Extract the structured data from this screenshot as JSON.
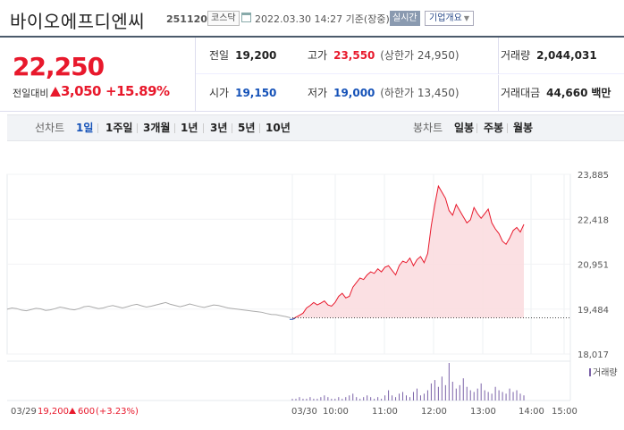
{
  "header": {
    "name": "바이오에프디엔씨",
    "code": "251120",
    "market": "코스닥",
    "datetime": "2022.03.30 14:27 기준(장중)",
    "realtime_label": "실시간",
    "company_label": "기업개요"
  },
  "summary": {
    "price": "22,250",
    "change_label": "전일대비",
    "change_value": "3,050",
    "change_pct": "+15.89%",
    "prev_close_label": "전일",
    "prev_close": "19,200",
    "high_label": "고가",
    "high": "23,550",
    "upper_limit": "(상한가 24,950)",
    "volume_label": "거래량",
    "volume": "2,044,031",
    "open_label": "시가",
    "open": "19,150",
    "low_label": "저가",
    "low": "19,000",
    "lower_limit": "(하한가 13,450)",
    "amount_label": "거래대금",
    "amount": "44,660",
    "amount_unit": "백만"
  },
  "tabs": {
    "line_label": "선차트",
    "line_tabs": [
      "1일",
      "1주일",
      "3개월",
      "1년",
      "3년",
      "5년",
      "10년"
    ],
    "active": "1일",
    "candle_label": "봉차트",
    "candle_tabs": [
      "일봉",
      "주봉",
      "월봉"
    ]
  },
  "colors": {
    "up": "#e8192c",
    "down": "#1552b8",
    "accent": "#4b5a6b",
    "volume": "#7b62a8"
  },
  "chart_data": {
    "type": "line",
    "y_ticks": [
      "23,885",
      "22,418",
      "20,951",
      "19,484",
      "18,017"
    ],
    "y_range": [
      18017,
      23885
    ],
    "reference": 19200,
    "prev_day": {
      "date": "03/29",
      "close": "19,200",
      "change": "600",
      "change_pct": "(+3.23%)",
      "values": [
        19480,
        19520,
        19500,
        19450,
        19430,
        19470,
        19510,
        19490,
        19440,
        19460,
        19500,
        19550,
        19520,
        19480,
        19460,
        19500,
        19560,
        19580,
        19540,
        19500,
        19520,
        19570,
        19600,
        19560,
        19520,
        19560,
        19610,
        19640,
        19590,
        19550,
        19580,
        19620,
        19660,
        19700,
        19640,
        19600,
        19560,
        19600,
        19650,
        19610,
        19570,
        19540,
        19580,
        19620,
        19600,
        19560,
        19520,
        19500,
        19480,
        19460,
        19440,
        19420,
        19400,
        19380,
        19340,
        19310,
        19300,
        19270,
        19240,
        19200
      ]
    },
    "today": {
      "date": "03/30",
      "x_labels": [
        "10:00",
        "11:00",
        "12:00",
        "13:00",
        "14:00",
        "15:00"
      ],
      "values": [
        19150,
        19220,
        19280,
        19350,
        19520,
        19600,
        19700,
        19620,
        19680,
        19750,
        19620,
        19580,
        19700,
        19900,
        20000,
        19850,
        19900,
        20200,
        20350,
        20500,
        20450,
        20600,
        20700,
        20650,
        20800,
        20700,
        20850,
        20900,
        20750,
        20600,
        20900,
        21050,
        21000,
        21150,
        20900,
        21100,
        21200,
        21000,
        21300,
        22200,
        22900,
        23500,
        23300,
        23100,
        22700,
        22550,
        22900,
        22700,
        22500,
        22300,
        22400,
        22800,
        22600,
        22450,
        22600,
        22750,
        22300,
        22100,
        21950,
        21700,
        21600,
        21800,
        22050,
        22150,
        22000,
        22250
      ]
    },
    "volume_label": "거래량",
    "volume_bars": [
      1,
      1,
      2,
      1,
      1,
      2,
      1,
      1,
      2,
      3,
      2,
      1,
      1,
      2,
      1,
      2,
      3,
      4,
      2,
      1,
      2,
      3,
      2,
      1,
      2,
      1,
      3,
      6,
      3,
      2,
      4,
      5,
      3,
      2,
      5,
      7,
      3,
      4,
      6,
      10,
      12,
      8,
      14,
      9,
      22,
      11,
      7,
      9,
      13,
      8,
      6,
      5,
      7,
      10,
      6,
      5,
      4,
      8,
      6,
      5,
      4,
      7,
      5,
      6,
      4,
      3
    ]
  }
}
